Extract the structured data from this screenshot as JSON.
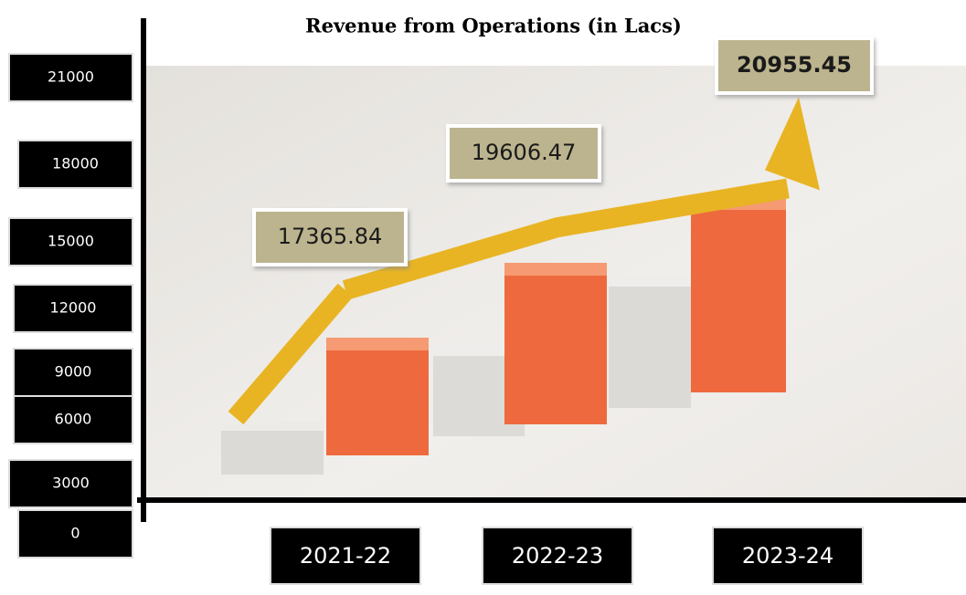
{
  "chart_data": {
    "type": "line",
    "title": "Revenue from Operations (in Lacs)",
    "categories": [
      "2021-22",
      "2022-23",
      "2023-24"
    ],
    "values": [
      17365.84,
      19606.47,
      20955.45
    ],
    "color": "#e8b424",
    "ylim": [
      0,
      21000
    ],
    "yticks": [
      0,
      3000,
      6000,
      9000,
      12000,
      15000,
      18000,
      21000
    ]
  }
}
